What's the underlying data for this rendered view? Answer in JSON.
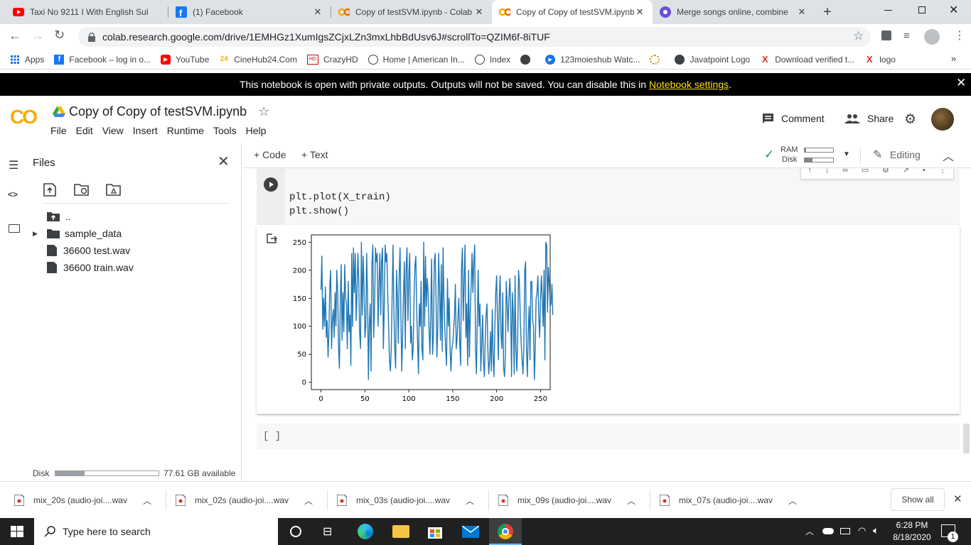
{
  "tabs": [
    {
      "title": "Taxi No 9211 I With English Sul",
      "icon": "youtube-icon"
    },
    {
      "title": "(1) Facebook",
      "icon": "facebook-icon"
    },
    {
      "title": "Copy of testSVM.ipynb - Colab",
      "icon": "colab-icon"
    },
    {
      "title": "Copy of Copy of testSVM.ipynb",
      "icon": "colab-icon",
      "active": true
    },
    {
      "title": "Merge songs online, combine",
      "icon": "merge-icon"
    }
  ],
  "address": {
    "url": "colab.research.google.com/drive/1EMHGz1XumIgsZCjxLZn3mxLhbBdUsv6J#scrollTo=QZIM6f-8iTUF"
  },
  "bookmarks": [
    "Apps",
    "Facebook – log in o...",
    "YouTube",
    "CineHub24.Com",
    "CrazyHD",
    "Home | American In...",
    "Index",
    "",
    "123moieshub Watc...",
    "",
    "Javatpoint Logo",
    "Download verified t...",
    "logo"
  ],
  "banner": {
    "text": "This notebook is open with private outputs. Outputs will not be saved. You can disable this in",
    "link": "Notebook settings",
    "suffix": "."
  },
  "colab": {
    "logo": "CO",
    "title": "Copy of Copy of testSVM.ipynb",
    "menu": [
      "File",
      "Edit",
      "View",
      "Insert",
      "Runtime",
      "Tools",
      "Help"
    ],
    "comment": "Comment",
    "share": "Share"
  },
  "sidebar": {
    "title": "Files",
    "items": [
      "..",
      "sample_data",
      "36600 test.wav",
      "36600 train.wav"
    ],
    "disk_label": "Disk",
    "disk_available": "77.61 GB available",
    "disk_used_fraction": 0.28
  },
  "nb_toolbar": {
    "code": "+ Code",
    "text": "+ Text",
    "ram": "RAM",
    "disk": "Disk",
    "editing": "Editing"
  },
  "cell": {
    "lines": [
      "plt.plot(X_train)",
      "plt.show()"
    ]
  },
  "empty_cell": {
    "bracket": "[ ]"
  },
  "chart_data": {
    "type": "line",
    "xlim": [
      -11,
      261
    ],
    "ylim": [
      -13,
      263
    ],
    "xticks": [
      "0",
      "50",
      "100",
      "150",
      "200",
      "250"
    ],
    "yticks": [
      "0",
      "50",
      "100",
      "150",
      "200",
      "250"
    ],
    "color": "#1f77b4",
    "series": [
      {
        "values": [
          165,
          225,
          95,
          150,
          100,
          170,
          80,
          110,
          45,
          90,
          170,
          200,
          60,
          110,
          130,
          80,
          160,
          100,
          200,
          160,
          60,
          25,
          150,
          210,
          75,
          160,
          90,
          210,
          150,
          140,
          60,
          180,
          90,
          120,
          30,
          230,
          100,
          240,
          160,
          230,
          110,
          160,
          230,
          180,
          90,
          60,
          250,
          120,
          225,
          170,
          80,
          100,
          230,
          150,
          5,
          100,
          140,
          20,
          210,
          245,
          80,
          130,
          240,
          215,
          230,
          100,
          170,
          230,
          120,
          215,
          240,
          60,
          130,
          245,
          215,
          230,
          155,
          100,
          40,
          20,
          60,
          150,
          245,
          130,
          60,
          25,
          200,
          150,
          70,
          190,
          240,
          120,
          20,
          90,
          160,
          215,
          60,
          205,
          240,
          110,
          190,
          230,
          70,
          100,
          40,
          60,
          150,
          210,
          225,
          130,
          70,
          15,
          140,
          100,
          180,
          60,
          40,
          250,
          100,
          225,
          135,
          185,
          160,
          100,
          50,
          120,
          220,
          50,
          80,
          215,
          230,
          150,
          45,
          100,
          230,
          160,
          75,
          210,
          55,
          240,
          150,
          95,
          60,
          30,
          185,
          100,
          150,
          60,
          20,
          60,
          70,
          90,
          120,
          175,
          60,
          80,
          120,
          150,
          70,
          30,
          200,
          240,
          110,
          175,
          245,
          80,
          140,
          30,
          200,
          45,
          125,
          175,
          230,
          160,
          215,
          245,
          60,
          15,
          110,
          200,
          100,
          140,
          20,
          65,
          120,
          40,
          10,
          75,
          120,
          140,
          60,
          15,
          40,
          90,
          20,
          130,
          45,
          10,
          100,
          160,
          190,
          110,
          40,
          150,
          190,
          85,
          60,
          160,
          25,
          10,
          50,
          180,
          140,
          90,
          150,
          185,
          140,
          10,
          160,
          120,
          15,
          190,
          60,
          20,
          80,
          200,
          175,
          110,
          70,
          40,
          15,
          60,
          200,
          215,
          60,
          10,
          90,
          135,
          40,
          180,
          180,
          110,
          100,
          5,
          60,
          150,
          160,
          190,
          120,
          80,
          145,
          190,
          150,
          100,
          200,
          40,
          250,
          245,
          125,
          205,
          175,
          135,
          140,
          175,
          120
        ]
      }
    ]
  },
  "downloads": [
    "mix_20s (audio-joi....wav",
    "mix_02s (audio-joi....wav",
    "mix_03s (audio-joi....wav",
    "mix_09s (audio-joi....wav",
    "mix_07s (audio-joi....wav"
  ],
  "downloads_show_all": "Show all",
  "taskbar": {
    "search": "Type here to search",
    "time": "6:28 PM",
    "date": "8/18/2020",
    "notifications": "1"
  }
}
